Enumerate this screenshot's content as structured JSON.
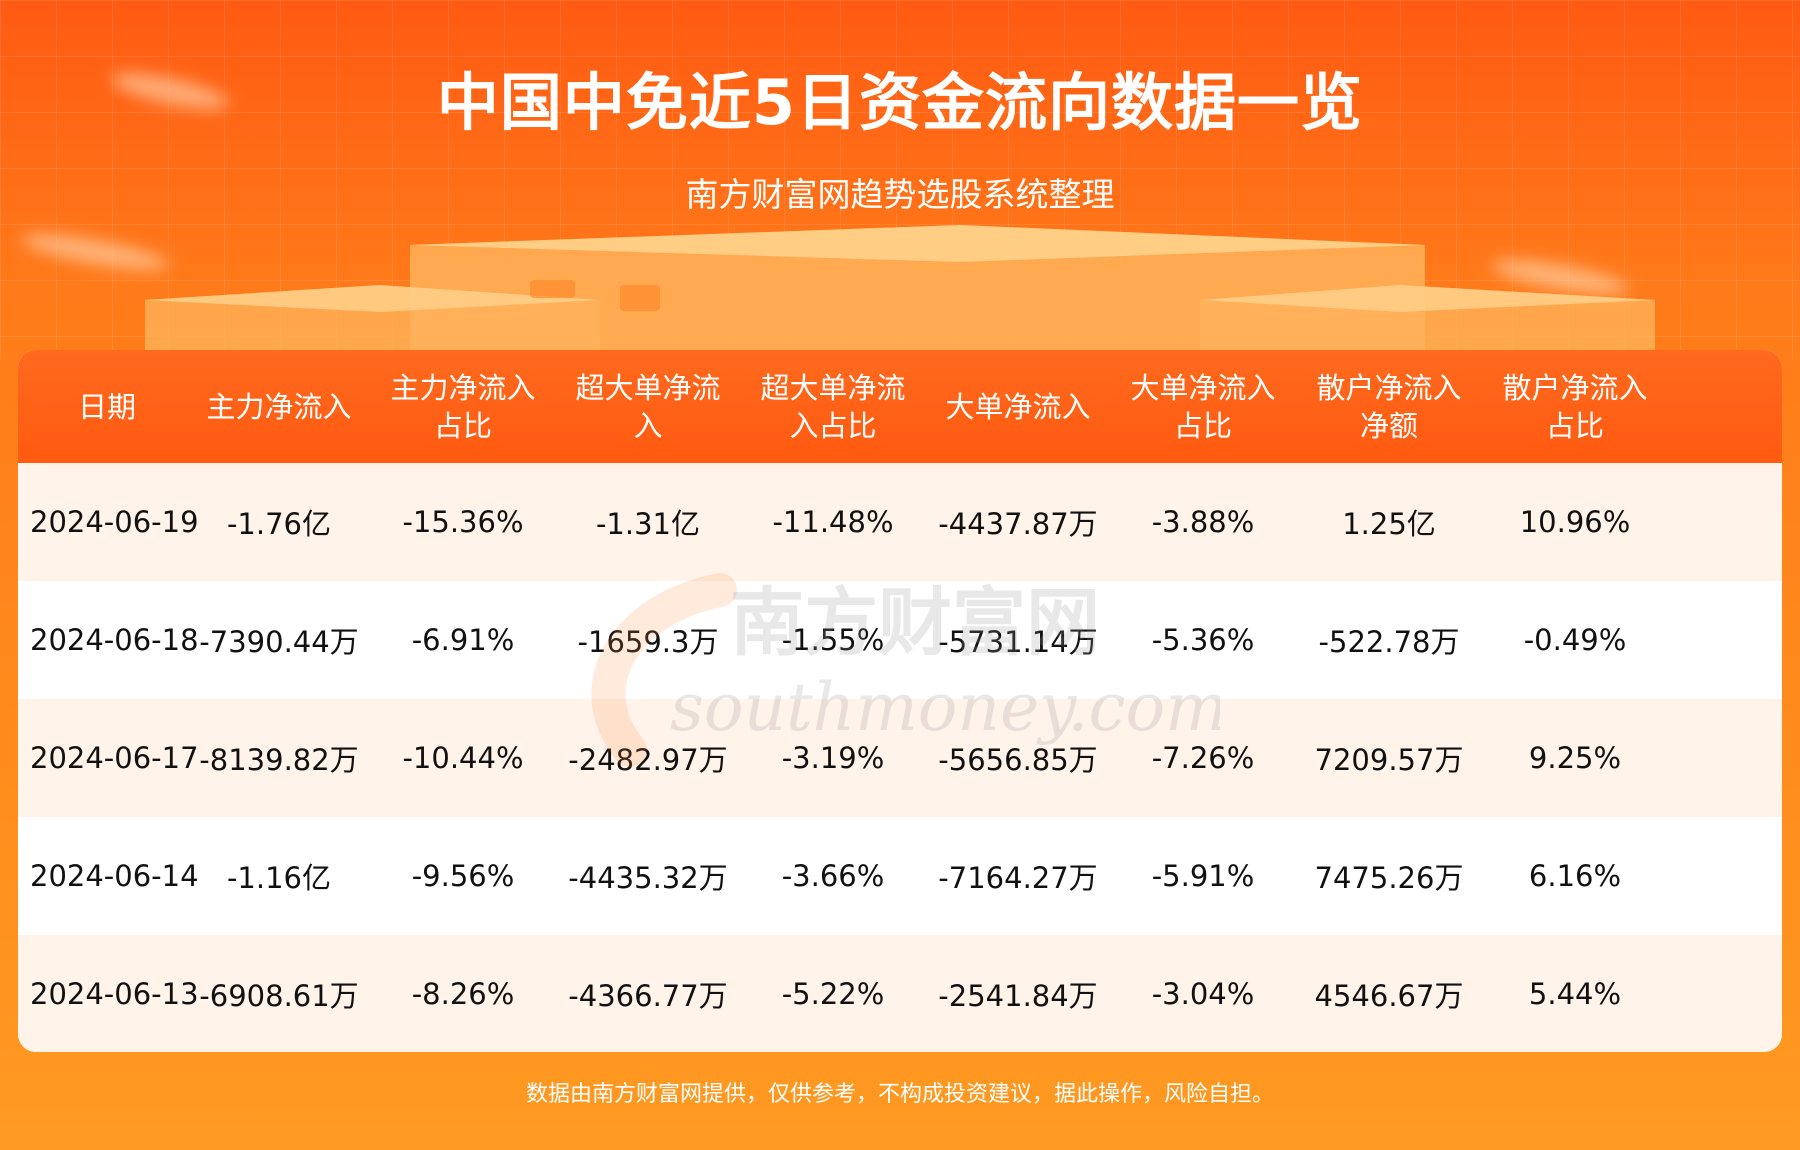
{
  "title": "中国中免近5日资金流向数据一览",
  "subtitle": "南方财富网趋势选股系统整理",
  "table": {
    "headers": [
      [
        "日期"
      ],
      [
        "主力净流入"
      ],
      [
        "主力净流入",
        "占比"
      ],
      [
        "超大单净流",
        "入"
      ],
      [
        "超大单净流",
        "入占比"
      ],
      [
        "大单净流入"
      ],
      [
        "大单净流入",
        "占比"
      ],
      [
        "散户净流入",
        "净额"
      ],
      [
        "散户净流入",
        "占比"
      ]
    ],
    "rows": [
      [
        "2024-06-19",
        "-1.76亿",
        "-15.36%",
        "-1.31亿",
        "-11.48%",
        "-4437.87万",
        "-3.88%",
        "1.25亿",
        "10.96%"
      ],
      [
        "2024-06-18",
        "-7390.44万",
        "-6.91%",
        "-1659.3万",
        "-1.55%",
        "-5731.14万",
        "-5.36%",
        "-522.78万",
        "-0.49%"
      ],
      [
        "2024-06-17",
        "-8139.82万",
        "-10.44%",
        "-2482.97万",
        "-3.19%",
        "-5656.85万",
        "-7.26%",
        "7209.57万",
        "9.25%"
      ],
      [
        "2024-06-14",
        "-1.16亿",
        "-9.56%",
        "-4435.32万",
        "-3.66%",
        "-7164.27万",
        "-5.91%",
        "7475.26万",
        "6.16%"
      ],
      [
        "2024-06-13",
        "-6908.61万",
        "-8.26%",
        "-4366.77万",
        "-5.22%",
        "-2541.84万",
        "-3.04%",
        "4546.67万",
        "5.44%"
      ]
    ]
  },
  "watermark": {
    "line1": "南方财富网",
    "line2": "southmoney.com"
  },
  "footer": "数据由南方财富网提供，仅供参考，不构成投资建议，据此操作，风险自担。",
  "colors": {
    "header_bg": "#ff5a10",
    "row_alt_bg": "#fff3ea",
    "page_bg": "#ff7a1a"
  }
}
